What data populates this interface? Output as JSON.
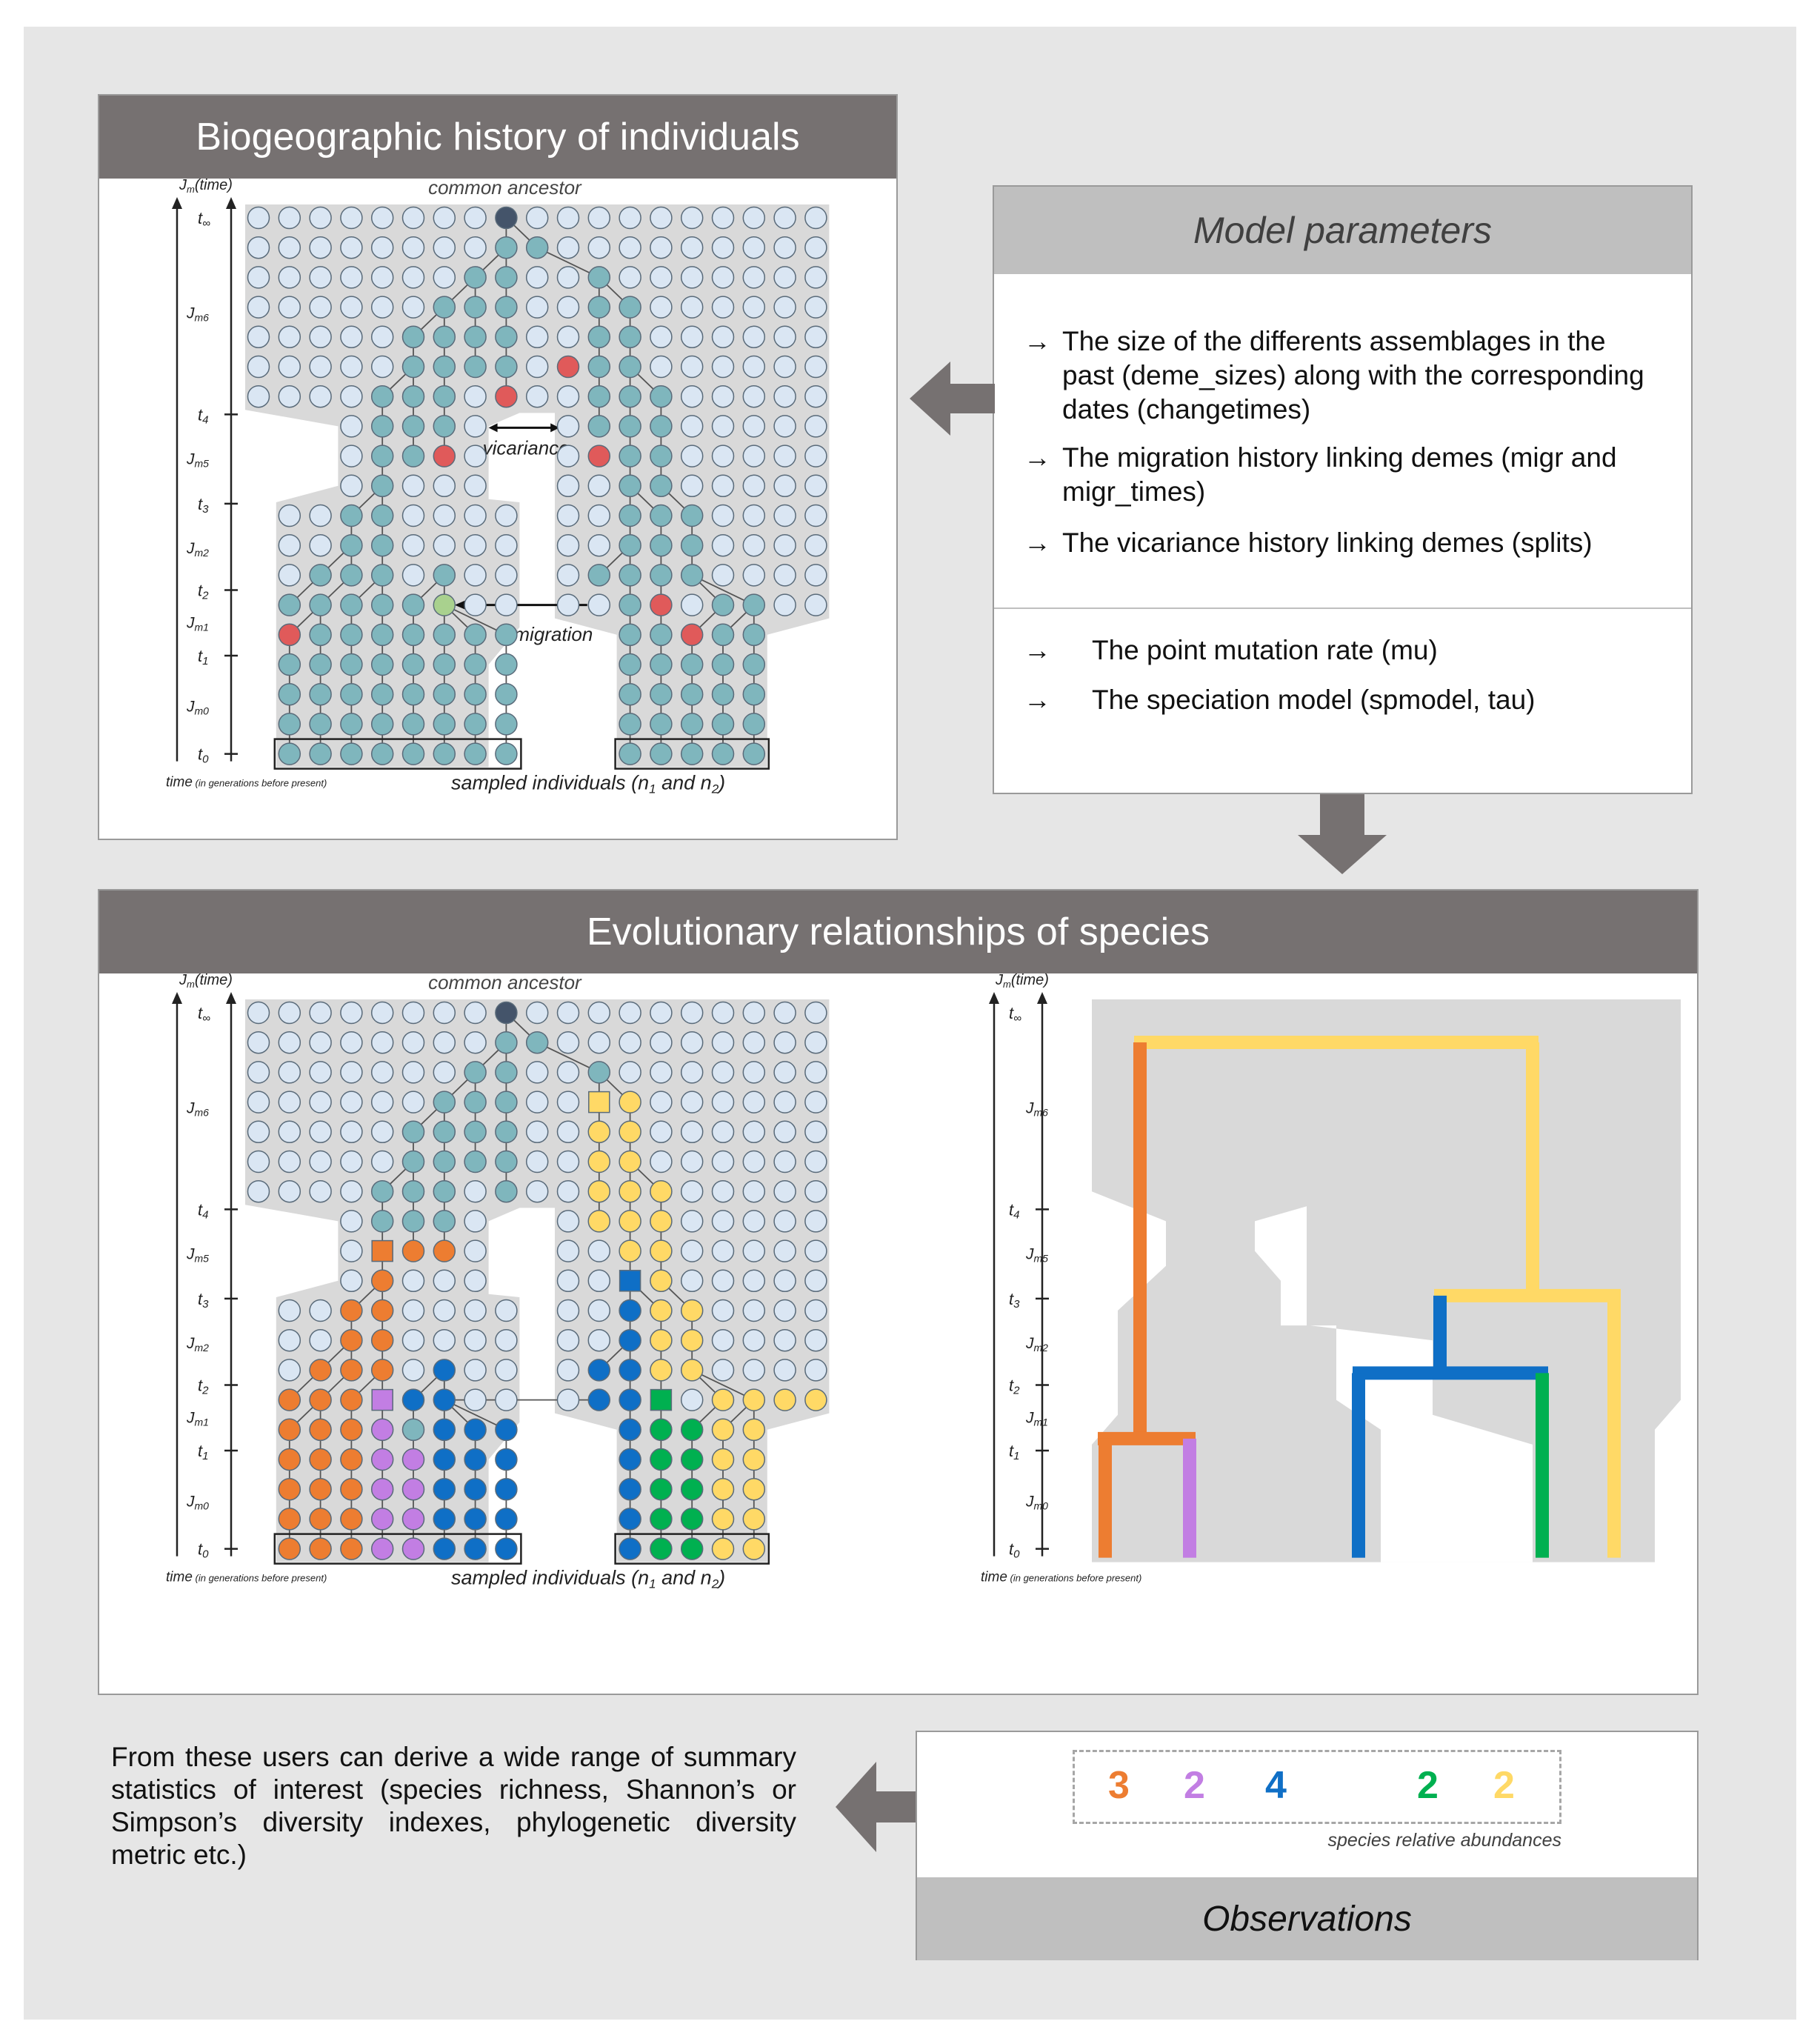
{
  "top_panel": {
    "title": "Biogeographic history of individuals",
    "common_ancestor": "common ancestor",
    "axis_label": "Jm(time)",
    "axis_label_main": "J",
    "axis_label_sub": "m",
    "axis_label_paren": "(time)",
    "time_label": "time",
    "time_note": "(in generations before present)",
    "sampled_label": "sampled individuals (n",
    "sampled_mid": " and n",
    "sampled_end": ")",
    "vicariance": "vicariance",
    "migration": "migration"
  },
  "model_parameters": {
    "title": "Model parameters",
    "items": [
      {
        "arrow": "→",
        "text": "The size of the differents assemblages in the past (deme_sizes) along with the corresponding dates (changetimes)"
      },
      {
        "arrow": "→",
        "text": "The migration history linking demes (migr and migr_times)"
      },
      {
        "arrow": "→",
        "text": "The vicariance history linking demes (splits)"
      },
      {
        "arrow": "→",
        "text": "The point mutation rate (mu)"
      },
      {
        "arrow": "→",
        "text": "The speciation model (spmodel, tau)"
      }
    ]
  },
  "bottom_panel": {
    "title": "Evolutionary relationships of species",
    "common_ancestor": "common ancestor",
    "time_label": "time",
    "time_note": "(in generations before present)",
    "sampled_label": "sampled individuals (n",
    "sampled_mid": " and n",
    "sampled_end": ")"
  },
  "time_ticks": [
    "t∞",
    "Jm6",
    "t4",
    "Jm5",
    "t3",
    "Jm2",
    "t2",
    "Jm1",
    "t1",
    "Jm0",
    "t0"
  ],
  "summary": "From these users can derive a wide range of summary statistics of interest (species richness, Shannon’s or Simpson’s diversity indexes, phylogenetic diversity metric etc.)",
  "observations": {
    "title": "Observations",
    "caption": "species relative abundances",
    "abundances": [
      {
        "value": "3",
        "color": "#ed7d31"
      },
      {
        "value": "2",
        "color": "#c27ee3"
      },
      {
        "value": "4",
        "color": "#0f6fc6"
      },
      {
        "value": "2",
        "color": "#00b050"
      },
      {
        "value": "2",
        "color": "#ffd966"
      }
    ]
  },
  "colors": {
    "header_dark": "#767171",
    "header_light": "#bfbfbf",
    "individual_empty": "#dae6f3",
    "lineage": "#7fb6bd",
    "ancestor": "#44546a",
    "red": "#e05a5a",
    "migrant": "#a9d18e",
    "orange": "#ed7d31",
    "purple": "#c27ee3",
    "blue": "#0f6fc6",
    "green": "#00b050",
    "yellow": "#ffd966"
  }
}
